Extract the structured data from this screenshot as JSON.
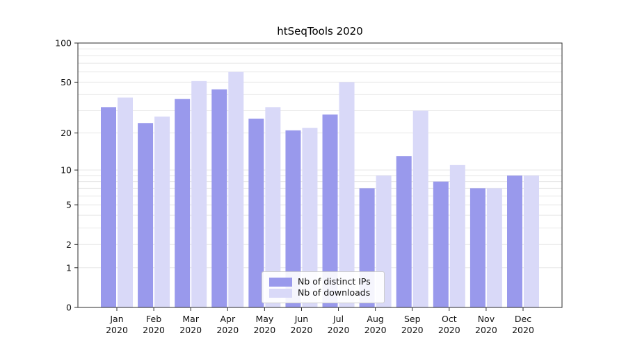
{
  "title": "htSeqTools 2020",
  "chart_data": {
    "type": "bar",
    "categories": [
      "Jan",
      "Feb",
      "Mar",
      "Apr",
      "May",
      "Jun",
      "Jul",
      "Aug",
      "Sep",
      "Oct",
      "Nov",
      "Dec"
    ],
    "year_label": "2020",
    "series": [
      {
        "name": "Nb of distinct IPs",
        "color": "#9999ec",
        "values": [
          32,
          24,
          37,
          44,
          26,
          21,
          28,
          7,
          13,
          8,
          7,
          9
        ]
      },
      {
        "name": "Nb of downloads",
        "color": "#d9d9f8",
        "values": [
          38,
          27,
          51,
          60,
          32,
          22,
          50,
          9,
          30,
          11,
          7,
          9
        ]
      }
    ],
    "scale": "log1p",
    "ylim": [
      0,
      100
    ],
    "y_ticks": [
      0,
      1,
      2,
      5,
      10,
      20,
      50,
      100
    ],
    "grid_values": [
      1,
      2,
      3,
      4,
      5,
      6,
      7,
      8,
      9,
      10,
      20,
      30,
      40,
      50,
      60,
      70,
      80,
      90,
      100
    ],
    "grid": true,
    "legend_position": "inside-bottom-center",
    "axis_color": "#2b2b2b",
    "grid_color": "#e7e7e7"
  }
}
